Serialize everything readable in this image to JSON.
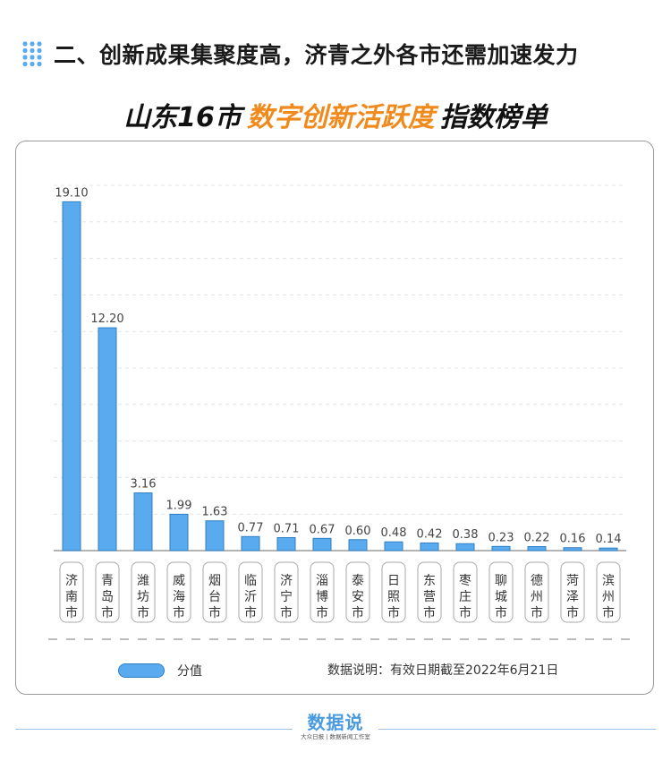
{
  "header": {
    "section_title": "二、创新成果集聚度高，济青之外各市还需加速发力"
  },
  "title": {
    "part1": "山东16市",
    "part2": "数字创新活跃度",
    "part3": "指数榜单"
  },
  "chart_data": {
    "type": "bar",
    "categories": [
      "济南市",
      "青岛市",
      "潍坊市",
      "威海市",
      "烟台市",
      "临沂市",
      "济宁市",
      "淄博市",
      "泰安市",
      "日照市",
      "东营市",
      "枣庄市",
      "聊城市",
      "德州市",
      "菏泽市",
      "滨州市"
    ],
    "series": [
      {
        "name": "分值",
        "values": [
          19.1,
          12.2,
          3.16,
          1.99,
          1.63,
          0.77,
          0.71,
          0.67,
          0.6,
          0.48,
          0.42,
          0.38,
          0.23,
          0.22,
          0.16,
          0.14
        ]
      }
    ],
    "value_labels": [
      "19.10",
      "12.20",
      "3.16",
      "1.99",
      "1.63",
      "0.77",
      "0.71",
      "0.67",
      "0.60",
      "0.48",
      "0.42",
      "0.38",
      "0.23",
      "0.22",
      "0.16",
      "0.14"
    ],
    "ylim": [
      0,
      20
    ],
    "grid": true,
    "bar_color": "#5aaaf0",
    "bar_edge_color": "#2f7fc4",
    "legend_position": "bottom-left"
  },
  "legend": {
    "label": "分值"
  },
  "note": "数据说明：有效日期截至2022年6月21日",
  "logo": {
    "text": "数据说",
    "sub": "大众日报 | 数据新闻工作室"
  },
  "colors": {
    "accent": "#f08a1c",
    "bar": "#5aaaf0",
    "header_dots": "#5aaaf0"
  }
}
